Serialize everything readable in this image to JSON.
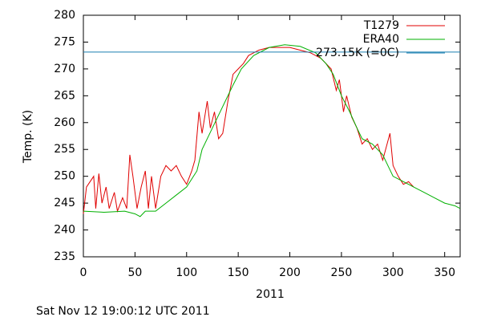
{
  "chart_data": {
    "type": "line",
    "ylabel": "Temp. (K)",
    "xlabel": "2011",
    "footer": "Sat Nov 12 19:00:12 UTC 2011",
    "xlim": [
      0,
      365
    ],
    "ylim": [
      235,
      280
    ],
    "xticks": [
      0,
      50,
      100,
      150,
      200,
      250,
      300,
      350
    ],
    "yticks": [
      235,
      240,
      245,
      250,
      255,
      260,
      265,
      270,
      275,
      280
    ],
    "grid": false,
    "legend": "top-right",
    "series": [
      {
        "name": "T1279",
        "color": "#e00000",
        "x": [
          0,
          3,
          10,
          12,
          15,
          18,
          22,
          25,
          30,
          33,
          38,
          42,
          45,
          48,
          52,
          56,
          60,
          63,
          66,
          70,
          75,
          80,
          85,
          90,
          95,
          100,
          105,
          108,
          112,
          115,
          120,
          123,
          127,
          131,
          135,
          140,
          145,
          150,
          155,
          160,
          170,
          180,
          190,
          200,
          210,
          220,
          230,
          240,
          245,
          248,
          252,
          255,
          260,
          265,
          270,
          275,
          280,
          285,
          290,
          297,
          300,
          305,
          310,
          315,
          320
        ],
        "values": [
          243,
          248,
          250,
          244,
          250.5,
          245,
          248,
          244,
          247,
          243.5,
          246,
          244,
          254,
          250,
          244,
          248,
          251,
          244,
          250,
          244,
          250,
          252,
          251,
          252,
          250,
          248.5,
          251,
          253,
          262,
          258,
          264,
          259,
          262,
          257,
          258,
          264,
          269,
          270,
          271,
          272.5,
          273.5,
          274,
          274,
          274,
          273.5,
          273,
          272,
          270,
          266,
          268,
          262,
          265,
          261,
          259,
          256,
          257,
          255,
          256,
          253,
          258,
          252,
          250,
          248.5,
          249,
          248
        ]
      },
      {
        "name": "ERA40",
        "color": "#00b000",
        "x": [
          0,
          20,
          40,
          50,
          55,
          60,
          70,
          80,
          90,
          100,
          110,
          115,
          125,
          135,
          145,
          153,
          165,
          180,
          195,
          210,
          225,
          235,
          242,
          250,
          258,
          265,
          270,
          280,
          290,
          295,
          300,
          310,
          320,
          330,
          340,
          350,
          360,
          365
        ],
        "values": [
          243.5,
          243.3,
          243.5,
          243,
          242.5,
          243.5,
          243.5,
          245,
          246.5,
          248,
          251,
          255,
          259,
          263,
          267,
          270,
          272.5,
          274,
          274.5,
          274.2,
          273,
          271,
          269,
          265,
          262,
          259,
          257,
          256,
          254,
          252,
          250,
          249,
          248,
          247,
          246,
          245,
          244.5,
          244
        ]
      },
      {
        "name": "273.15K (=0C)",
        "color": "#1a7fb0",
        "x": [
          0,
          365
        ],
        "values": [
          273.15,
          273.15
        ]
      }
    ]
  }
}
